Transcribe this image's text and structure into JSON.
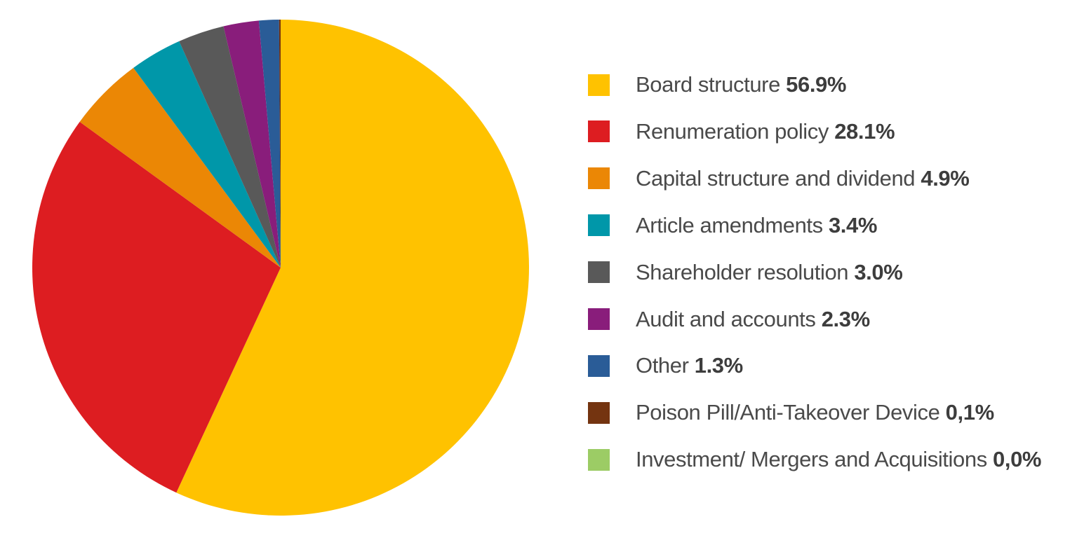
{
  "chart_data": {
    "type": "pie",
    "title": "",
    "legend": "right",
    "slices": [
      {
        "name": "Board structure",
        "value": 56.9,
        "value_label": "56.9%",
        "color": "#FFC200"
      },
      {
        "name": "Renumeration policy",
        "value": 28.1,
        "value_label": "28.1%",
        "color": "#DD1D21"
      },
      {
        "name": "Capital structure and dividend",
        "value": 4.9,
        "value_label": "4.9%",
        "color": "#EB8705"
      },
      {
        "name": "Article amendments",
        "value": 3.4,
        "value_label": "3.4%",
        "color": "#0097A9"
      },
      {
        "name": "Shareholder resolution",
        "value": 3.0,
        "value_label": "3.0%",
        "color": "#595959"
      },
      {
        "name": "Audit and accounts",
        "value": 2.3,
        "value_label": "2.3%",
        "color": "#891D7B"
      },
      {
        "name": "Other",
        "value": 1.3,
        "value_label": "1.3%",
        "color": "#2A5C97"
      },
      {
        "name": "Poison Pill/Anti-Takeover Device",
        "value": 0.1,
        "value_label": "0,1%",
        "color": "#743410"
      },
      {
        "name": "Investment/ Mergers and Acquisitions",
        "value": 0.0,
        "value_label": "0,0%",
        "color": "#9CCC65"
      }
    ]
  }
}
